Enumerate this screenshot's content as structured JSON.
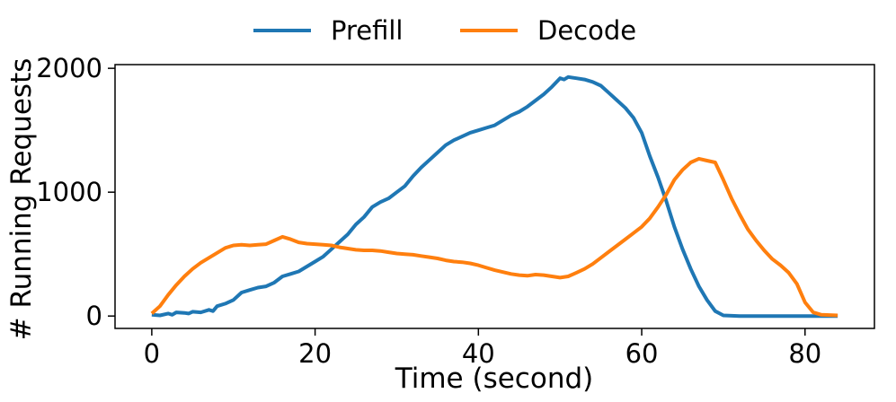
{
  "chart_data": {
    "type": "line",
    "xlabel": "Time (second)",
    "ylabel": "# Running Requests",
    "xlim": [
      -4.5,
      88.5
    ],
    "ylim": [
      -100,
      2030
    ],
    "xticks": [
      0,
      20,
      40,
      60,
      80
    ],
    "yticks": [
      0,
      1000,
      2000
    ],
    "grid": false,
    "legend_position": "top-center",
    "series": [
      {
        "name": "Prefill",
        "color": "#1f77b4",
        "points": [
          [
            0,
            10
          ],
          [
            1,
            5
          ],
          [
            2,
            20
          ],
          [
            2.5,
            10
          ],
          [
            3,
            30
          ],
          [
            4,
            25
          ],
          [
            4.5,
            20
          ],
          [
            5,
            35
          ],
          [
            6,
            30
          ],
          [
            7,
            50
          ],
          [
            7.5,
            40
          ],
          [
            8,
            80
          ],
          [
            9,
            100
          ],
          [
            10,
            130
          ],
          [
            11,
            190
          ],
          [
            12,
            210
          ],
          [
            13,
            230
          ],
          [
            14,
            240
          ],
          [
            15,
            270
          ],
          [
            16,
            320
          ],
          [
            17,
            340
          ],
          [
            18,
            360
          ],
          [
            19,
            400
          ],
          [
            20,
            440
          ],
          [
            21,
            480
          ],
          [
            22,
            540
          ],
          [
            23,
            600
          ],
          [
            24,
            660
          ],
          [
            25,
            740
          ],
          [
            26,
            800
          ],
          [
            27,
            880
          ],
          [
            28,
            920
          ],
          [
            29,
            950
          ],
          [
            30,
            1000
          ],
          [
            31,
            1050
          ],
          [
            32,
            1130
          ],
          [
            33,
            1200
          ],
          [
            34,
            1260
          ],
          [
            35,
            1320
          ],
          [
            36,
            1380
          ],
          [
            37,
            1420
          ],
          [
            38,
            1450
          ],
          [
            39,
            1480
          ],
          [
            40,
            1500
          ],
          [
            41,
            1520
          ],
          [
            42,
            1540
          ],
          [
            43,
            1580
          ],
          [
            44,
            1620
          ],
          [
            45,
            1650
          ],
          [
            46,
            1690
          ],
          [
            47,
            1740
          ],
          [
            48,
            1790
          ],
          [
            49,
            1850
          ],
          [
            50,
            1920
          ],
          [
            50.5,
            1910
          ],
          [
            51,
            1930
          ],
          [
            52,
            1920
          ],
          [
            53,
            1910
          ],
          [
            54,
            1890
          ],
          [
            55,
            1860
          ],
          [
            56,
            1800
          ],
          [
            57,
            1740
          ],
          [
            58,
            1680
          ],
          [
            59,
            1600
          ],
          [
            60,
            1480
          ],
          [
            61,
            1290
          ],
          [
            62,
            1120
          ],
          [
            63,
            930
          ],
          [
            64,
            720
          ],
          [
            65,
            540
          ],
          [
            66,
            380
          ],
          [
            67,
            240
          ],
          [
            68,
            130
          ],
          [
            69,
            40
          ],
          [
            70,
            5
          ],
          [
            72,
            0
          ],
          [
            80,
            0
          ],
          [
            84,
            0
          ]
        ]
      },
      {
        "name": "Decode",
        "color": "#ff7f0e",
        "points": [
          [
            0,
            20
          ],
          [
            1,
            80
          ],
          [
            2,
            170
          ],
          [
            3,
            250
          ],
          [
            4,
            320
          ],
          [
            5,
            380
          ],
          [
            6,
            430
          ],
          [
            7,
            470
          ],
          [
            8,
            510
          ],
          [
            9,
            550
          ],
          [
            10,
            570
          ],
          [
            11,
            575
          ],
          [
            12,
            570
          ],
          [
            13,
            575
          ],
          [
            14,
            580
          ],
          [
            15,
            610
          ],
          [
            16,
            640
          ],
          [
            17,
            620
          ],
          [
            18,
            595
          ],
          [
            19,
            585
          ],
          [
            20,
            580
          ],
          [
            21,
            575
          ],
          [
            22,
            570
          ],
          [
            23,
            555
          ],
          [
            24,
            545
          ],
          [
            25,
            535
          ],
          [
            26,
            530
          ],
          [
            27,
            530
          ],
          [
            28,
            525
          ],
          [
            29,
            515
          ],
          [
            30,
            505
          ],
          [
            31,
            500
          ],
          [
            32,
            495
          ],
          [
            33,
            485
          ],
          [
            34,
            475
          ],
          [
            35,
            465
          ],
          [
            36,
            450
          ],
          [
            37,
            440
          ],
          [
            38,
            435
          ],
          [
            39,
            425
          ],
          [
            40,
            410
          ],
          [
            41,
            390
          ],
          [
            42,
            370
          ],
          [
            43,
            355
          ],
          [
            44,
            340
          ],
          [
            45,
            330
          ],
          [
            46,
            325
          ],
          [
            47,
            335
          ],
          [
            48,
            330
          ],
          [
            49,
            320
          ],
          [
            50,
            310
          ],
          [
            51,
            320
          ],
          [
            52,
            350
          ],
          [
            53,
            380
          ],
          [
            54,
            420
          ],
          [
            55,
            470
          ],
          [
            56,
            520
          ],
          [
            57,
            570
          ],
          [
            58,
            620
          ],
          [
            59,
            670
          ],
          [
            60,
            720
          ],
          [
            61,
            790
          ],
          [
            62,
            880
          ],
          [
            63,
            980
          ],
          [
            64,
            1100
          ],
          [
            65,
            1180
          ],
          [
            66,
            1240
          ],
          [
            67,
            1270
          ],
          [
            68,
            1255
          ],
          [
            69,
            1240
          ],
          [
            70,
            1100
          ],
          [
            71,
            950
          ],
          [
            72,
            820
          ],
          [
            73,
            700
          ],
          [
            74,
            610
          ],
          [
            75,
            530
          ],
          [
            76,
            460
          ],
          [
            77,
            410
          ],
          [
            78,
            350
          ],
          [
            79,
            260
          ],
          [
            80,
            110
          ],
          [
            81,
            30
          ],
          [
            82,
            10
          ],
          [
            84,
            5
          ]
        ]
      }
    ]
  }
}
